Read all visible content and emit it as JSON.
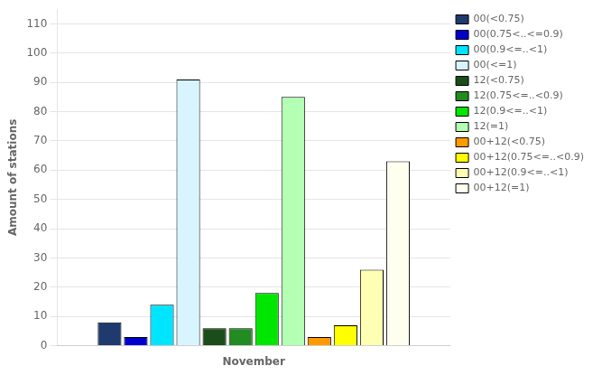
{
  "chart_data": {
    "type": "bar",
    "ylabel": "Amount of stations",
    "categories": [
      "November"
    ],
    "series": [
      {
        "name": "00(<0.75)",
        "color": "#1e3a6e",
        "values": [
          8
        ]
      },
      {
        "name": "00(0.75<..<=0.9)",
        "color": "#0000cd",
        "values": [
          3
        ]
      },
      {
        "name": "00(0.9<=..<1)",
        "color": "#00e5ff",
        "values": [
          14
        ]
      },
      {
        "name": "00(<=1)",
        "color": "#d8f5ff",
        "values": [
          91
        ]
      },
      {
        "name": "12(<0.75)",
        "color": "#1a4d1a",
        "values": [
          6
        ]
      },
      {
        "name": "12(0.75<=..<0.9)",
        "color": "#228b22",
        "values": [
          6
        ]
      },
      {
        "name": "12(0.9<=..<1)",
        "color": "#00e600",
        "values": [
          18
        ]
      },
      {
        "name": "12(=1)",
        "color": "#b3ffb3",
        "values": [
          85
        ]
      },
      {
        "name": "00+12(<0.75)",
        "color": "#ff9900",
        "values": [
          3
        ]
      },
      {
        "name": "00+12(0.75<=..<0.9)",
        "color": "#ffff00",
        "values": [
          7
        ]
      },
      {
        "name": "00+12(0.9<=..<1)",
        "color": "#ffffb3",
        "values": [
          26
        ]
      },
      {
        "name": "00+12(=1)",
        "color": "#fffff0",
        "values": [
          63
        ]
      }
    ],
    "ylim": [
      0,
      115
    ],
    "yticks": [
      0,
      10,
      20,
      30,
      40,
      50,
      60,
      70,
      80,
      90,
      100,
      110
    ],
    "grid": true,
    "legend": "upper right"
  }
}
